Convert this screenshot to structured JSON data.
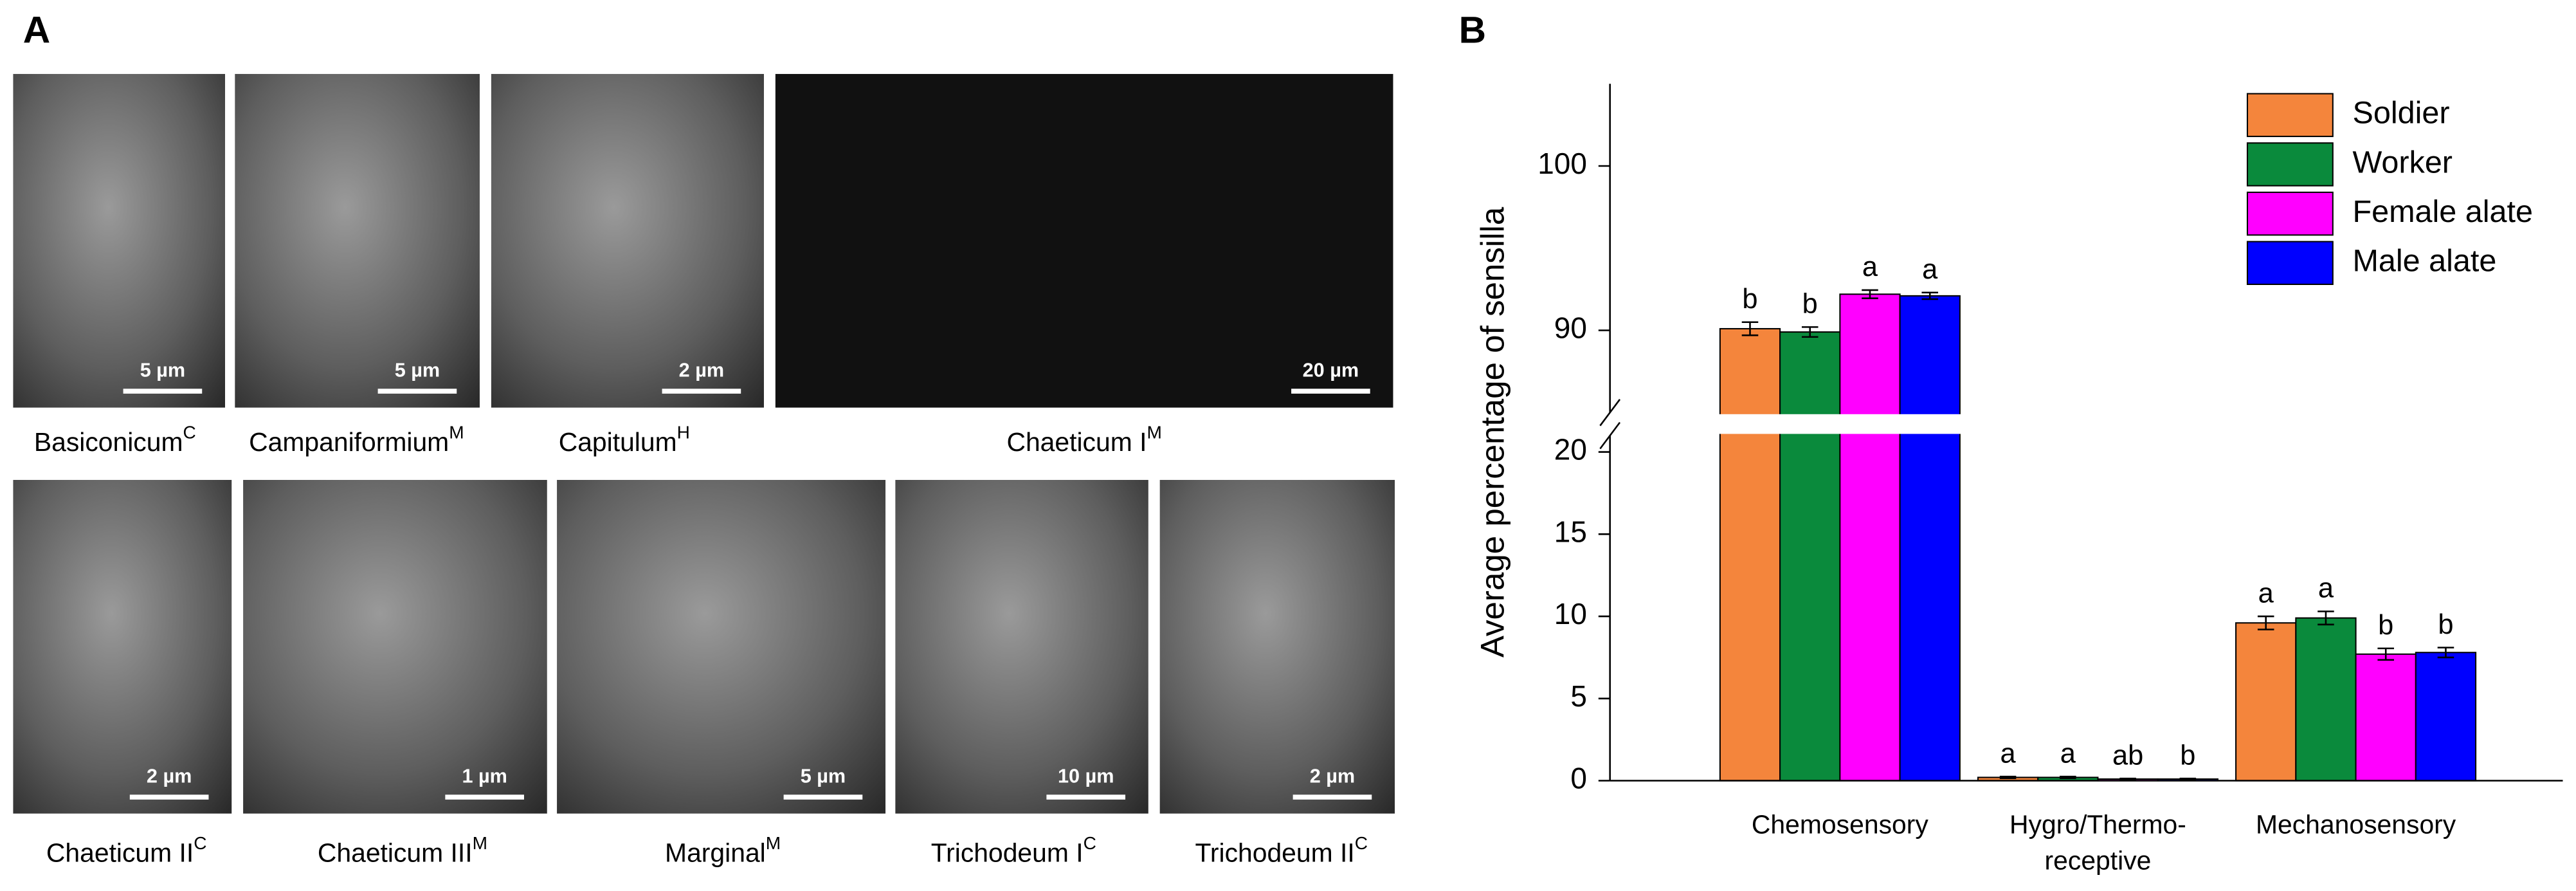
{
  "panel_a": {
    "label": "A",
    "images": [
      {
        "name": "Basiconicum",
        "sup": "C",
        "scale": "5 µm"
      },
      {
        "name": "Campaniformium",
        "sup": "M",
        "scale": "5 µm"
      },
      {
        "name": "Capitulum",
        "sup": "H",
        "scale": "2 µm"
      },
      {
        "name": "Chaeticum I",
        "sup": "M",
        "scale": "20 µm"
      },
      {
        "name": "Chaeticum II",
        "sup": "C",
        "scale": "2 µm"
      },
      {
        "name": "Chaeticum III",
        "sup": "M",
        "scale": "1 µm"
      },
      {
        "name": "Marginal",
        "sup": "M",
        "scale": "5 µm"
      },
      {
        "name": "Trichodeum I",
        "sup": "C",
        "scale": "10 µm"
      },
      {
        "name": "Trichodeum II",
        "sup": "C",
        "scale": "2 µm"
      }
    ]
  },
  "chart_data": {
    "type": "bar",
    "panel_label": "B",
    "y_label": "Average percentage of sensilla",
    "categories": [
      "Chemosensory",
      "Hygro/Thermo-\nreceptive",
      "Mechanosensory"
    ],
    "series": [
      {
        "name": "Soldier",
        "color": "#f4853c",
        "values": [
          90.1,
          0.2,
          9.6
        ],
        "errors": [
          0.4,
          0.05,
          0.4
        ],
        "letters": [
          "b",
          "a",
          "a"
        ]
      },
      {
        "name": "Worker",
        "color": "#0a8a3c",
        "values": [
          89.9,
          0.2,
          9.9
        ],
        "errors": [
          0.3,
          0.05,
          0.4
        ],
        "letters": [
          "b",
          "a",
          "a"
        ]
      },
      {
        "name": "Female alate",
        "color": "#ff00ff",
        "values": [
          92.2,
          0.1,
          7.7
        ],
        "errors": [
          0.25,
          0.03,
          0.35
        ],
        "letters": [
          "a",
          "ab",
          "b"
        ]
      },
      {
        "name": "Male alate",
        "color": "#0000ff",
        "values": [
          92.1,
          0.1,
          7.8
        ],
        "errors": [
          0.2,
          0.03,
          0.3
        ],
        "letters": [
          "a",
          "b",
          "b"
        ]
      }
    ],
    "ylim": [
      0,
      105
    ],
    "y_break": [
      21,
      85
    ],
    "yticks": [
      0,
      5,
      10,
      15,
      20,
      90,
      100
    ],
    "legend": "top-right"
  }
}
